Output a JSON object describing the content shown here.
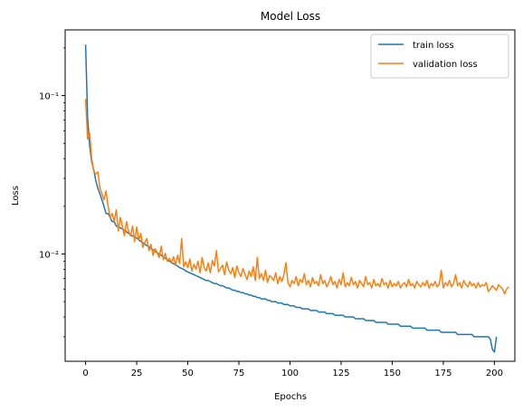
{
  "chart_data": {
    "type": "line",
    "title": "Model Loss",
    "xlabel": "Epochs",
    "ylabel": "Loss",
    "yscale": "log",
    "xlim": [
      -10,
      210
    ],
    "ylim": [
      0.0021,
      0.26
    ],
    "xticks": [
      0,
      25,
      50,
      75,
      100,
      125,
      150,
      175,
      200
    ],
    "yticks_major": [
      0.01,
      0.1
    ],
    "ytick_labels": [
      "10⁻²",
      "10⁻¹"
    ],
    "grid": false,
    "legend_position": "top-right",
    "series": [
      {
        "name": "train loss",
        "color": "#1f77b4",
        "values": [
          0.21,
          0.072,
          0.048,
          0.038,
          0.034,
          0.029,
          0.026,
          0.024,
          0.022,
          0.02,
          0.018,
          0.018,
          0.017,
          0.016,
          0.016,
          0.015,
          0.0148,
          0.0146,
          0.0144,
          0.0141,
          0.0138,
          0.0135,
          0.0132,
          0.013,
          0.0128,
          0.0126,
          0.0123,
          0.012,
          0.0118,
          0.0115,
          0.0113,
          0.0111,
          0.0108,
          0.0106,
          0.0104,
          0.0102,
          0.01,
          0.0098,
          0.0096,
          0.0094,
          0.0092,
          0.009,
          0.0088,
          0.0087,
          0.0085,
          0.0084,
          0.0082,
          0.0081,
          0.008,
          0.0078,
          0.0077,
          0.0076,
          0.0075,
          0.0074,
          0.0073,
          0.0072,
          0.0071,
          0.007,
          0.0069,
          0.0068,
          0.0068,
          0.0067,
          0.0066,
          0.0065,
          0.0065,
          0.0064,
          0.0063,
          0.0063,
          0.0062,
          0.0061,
          0.0061,
          0.006,
          0.0059,
          0.0059,
          0.0058,
          0.0058,
          0.0057,
          0.0057,
          0.0056,
          0.0056,
          0.0055,
          0.0055,
          0.0054,
          0.0054,
          0.0053,
          0.0053,
          0.0052,
          0.0052,
          0.0052,
          0.0051,
          0.0051,
          0.005,
          0.005,
          0.005,
          0.0049,
          0.0049,
          0.0049,
          0.0048,
          0.0048,
          0.0048,
          0.0047,
          0.0047,
          0.0047,
          0.0046,
          0.0046,
          0.0046,
          0.0045,
          0.0045,
          0.0045,
          0.0045,
          0.0044,
          0.0044,
          0.0044,
          0.0044,
          0.0043,
          0.0043,
          0.0043,
          0.0043,
          0.0042,
          0.0042,
          0.0042,
          0.0042,
          0.0041,
          0.0041,
          0.0041,
          0.0041,
          0.0041,
          0.004,
          0.004,
          0.004,
          0.004,
          0.004,
          0.0039,
          0.0039,
          0.0039,
          0.0039,
          0.0039,
          0.0038,
          0.0038,
          0.0038,
          0.0038,
          0.0038,
          0.0037,
          0.0037,
          0.0037,
          0.0037,
          0.0037,
          0.0037,
          0.0036,
          0.0036,
          0.0036,
          0.0036,
          0.0036,
          0.0036,
          0.0035,
          0.0035,
          0.0035,
          0.0035,
          0.0035,
          0.0035,
          0.0034,
          0.0034,
          0.0034,
          0.0034,
          0.0034,
          0.0034,
          0.0034,
          0.0033,
          0.0033,
          0.0033,
          0.0033,
          0.0033,
          0.0033,
          0.0033,
          0.0032,
          0.0032,
          0.0032,
          0.0032,
          0.0032,
          0.0032,
          0.0032,
          0.0032,
          0.0031,
          0.0031,
          0.0031,
          0.0031,
          0.0031,
          0.0031,
          0.0031,
          0.0031,
          0.003,
          0.003,
          0.003,
          0.003,
          0.003,
          0.003,
          0.003,
          0.003,
          0.0029,
          0.0025,
          0.0024,
          0.003
        ]
      },
      {
        "name": "validation loss",
        "color": "#ff7f0e",
        "values": [
          0.095,
          0.053,
          0.058,
          0.04,
          0.033,
          0.032,
          0.033,
          0.026,
          0.024,
          0.022,
          0.025,
          0.02,
          0.017,
          0.018,
          0.016,
          0.019,
          0.014,
          0.017,
          0.015,
          0.013,
          0.016,
          0.014,
          0.013,
          0.015,
          0.012,
          0.0148,
          0.0122,
          0.0135,
          0.011,
          0.0118,
          0.0125,
          0.0105,
          0.0115,
          0.0098,
          0.0108,
          0.0102,
          0.0095,
          0.0112,
          0.0092,
          0.0101,
          0.009,
          0.0094,
          0.0088,
          0.0096,
          0.0085,
          0.0098,
          0.0087,
          0.0125,
          0.0083,
          0.0089,
          0.0082,
          0.0093,
          0.0078,
          0.0086,
          0.008,
          0.009,
          0.0076,
          0.0095,
          0.0082,
          0.0078,
          0.0088,
          0.0076,
          0.0091,
          0.0084,
          0.0105,
          0.0077,
          0.0081,
          0.0085,
          0.0074,
          0.0089,
          0.0079,
          0.0075,
          0.0082,
          0.0071,
          0.0084,
          0.0076,
          0.0072,
          0.0081,
          0.0074,
          0.0069,
          0.0078,
          0.0072,
          0.0083,
          0.0068,
          0.0095,
          0.007,
          0.0075,
          0.0068,
          0.0079,
          0.0066,
          0.0073,
          0.0071,
          0.0068,
          0.0076,
          0.0065,
          0.0072,
          0.0067,
          0.0074,
          0.0088,
          0.0066,
          0.0062,
          0.0068,
          0.0065,
          0.0072,
          0.0063,
          0.0069,
          0.0066,
          0.0075,
          0.0064,
          0.0068,
          0.0062,
          0.0071,
          0.0065,
          0.0067,
          0.0063,
          0.0074,
          0.0065,
          0.0068,
          0.0062,
          0.0066,
          0.0072,
          0.0064,
          0.0067,
          0.0061,
          0.0069,
          0.0064,
          0.0076,
          0.0062,
          0.0066,
          0.0063,
          0.0071,
          0.0064,
          0.0067,
          0.0061,
          0.0068,
          0.0065,
          0.0062,
          0.0072,
          0.0064,
          0.0066,
          0.0061,
          0.0069,
          0.0063,
          0.0065,
          0.0062,
          0.007,
          0.0064,
          0.0066,
          0.0061,
          0.0068,
          0.0062,
          0.0065,
          0.0063,
          0.0067,
          0.0061,
          0.0064,
          0.0066,
          0.0062,
          0.0069,
          0.0063,
          0.0065,
          0.0061,
          0.0067,
          0.0064,
          0.0062,
          0.0066,
          0.0063,
          0.0068,
          0.0061,
          0.0065,
          0.0063,
          0.0067,
          0.0062,
          0.0064,
          0.0079,
          0.0061,
          0.0066,
          0.0063,
          0.0068,
          0.0062,
          0.0065,
          0.0074,
          0.0063,
          0.0066,
          0.0061,
          0.0068,
          0.0064,
          0.0062,
          0.0067,
          0.0063,
          0.0065,
          0.0061,
          0.0066,
          0.0062,
          0.0064,
          0.0063,
          0.0066,
          0.0058,
          0.006,
          0.0063,
          0.0061,
          0.0059,
          0.0064,
          0.0062,
          0.006,
          0.0056,
          0.006,
          0.0062
        ]
      }
    ]
  }
}
